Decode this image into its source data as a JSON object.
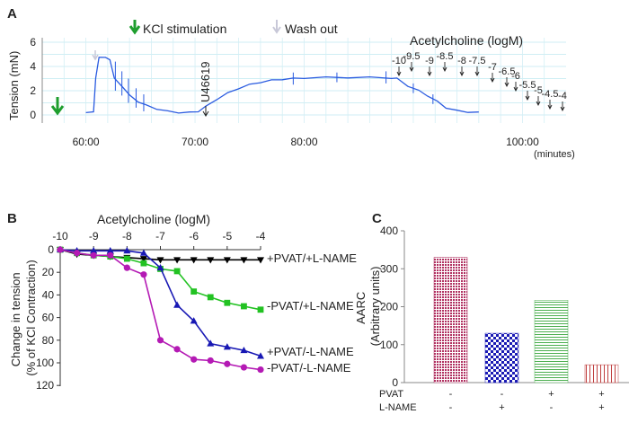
{
  "chart_data": [
    {
      "panel": "A",
      "type": "line",
      "ylabel": "Tension (mN)",
      "yticks": [
        "0",
        "2",
        "4",
        "6"
      ],
      "ylim": [
        -1,
        6.8
      ],
      "xlim": [
        56,
        104
      ],
      "xticks": [
        {
          "v": 60,
          "label": "60:00"
        },
        {
          "v": 70,
          "label": "70:00"
        },
        {
          "v": 80,
          "label": "80:00"
        },
        {
          "v": 100,
          "label": "100:00"
        }
      ],
      "xunit": "(minutes)",
      "trace": [
        [
          60,
          0.15
        ],
        [
          60.7,
          0.3
        ],
        [
          60.9,
          3.0
        ],
        [
          61.2,
          4.8
        ],
        [
          61.8,
          4.7
        ],
        [
          62.2,
          4.6
        ],
        [
          62.6,
          3.0
        ],
        [
          63.4,
          2.3
        ],
        [
          64,
          1.6
        ],
        [
          64.8,
          1.1
        ],
        [
          65.5,
          0.8
        ],
        [
          66.5,
          0.5
        ],
        [
          67.5,
          0.3
        ],
        [
          68.5,
          0.2
        ],
        [
          69.5,
          0.2
        ],
        [
          70.3,
          0.3
        ],
        [
          71,
          0.7
        ],
        [
          72,
          1.3
        ],
        [
          73,
          1.8
        ],
        [
          74,
          2.2
        ],
        [
          75,
          2.5
        ],
        [
          76,
          2.7
        ],
        [
          77,
          2.85
        ],
        [
          78,
          2.95
        ],
        [
          79,
          3.0
        ],
        [
          80,
          3.05
        ],
        [
          82,
          3.1
        ],
        [
          84,
          3.1
        ],
        [
          86,
          3.1
        ],
        [
          88,
          3.05
        ],
        [
          88.5,
          3.0
        ],
        [
          89.5,
          2.4
        ],
        [
          90.5,
          2.0
        ],
        [
          91.3,
          1.6
        ],
        [
          92.2,
          1.1
        ],
        [
          93,
          0.6
        ],
        [
          94,
          0.35
        ],
        [
          95,
          0.25
        ],
        [
          96,
          0.2
        ]
      ],
      "annotations": {
        "kcl": "KCl stimulation",
        "wash": "Wash out",
        "u46619": "U46619",
        "ach_title": "Acetylcholine (logM)",
        "doses": [
          "-10",
          "-9.5",
          "-9",
          "-8.5",
          "-8",
          "-7.5",
          "-7",
          "-6.5",
          "-6",
          "-5.5",
          "-5",
          "-4.5",
          "-4"
        ]
      }
    },
    {
      "panel": "B",
      "type": "line",
      "title": "Acetylcholine (logM)",
      "ylabel": "Change in tension (% of KCl Contraction)",
      "xlim": [
        -10,
        -4
      ],
      "ylim": [
        0,
        125
      ],
      "xticks": [
        "-10",
        "-9",
        "-8",
        "-7",
        "-6",
        "-5",
        "-4"
      ],
      "yticks": [
        "0",
        "20",
        "40",
        "60",
        "80",
        "100",
        "120"
      ],
      "x": [
        -10,
        -9.5,
        -9,
        -8.5,
        -8,
        -7.5,
        -7,
        -6.5,
        -6,
        -5.5,
        -5,
        -4.5,
        -4
      ],
      "series": [
        {
          "name": "+PVAT/+L-NAME",
          "color": "#000000",
          "marker": "triangle-down",
          "values": [
            0,
            4,
            5,
            6,
            7,
            8,
            9,
            9,
            9,
            9,
            9,
            9,
            9
          ]
        },
        {
          "name": "-PVAT/+L-NAME",
          "color": "#22c222",
          "marker": "square",
          "values": [
            0,
            3,
            5,
            6,
            8,
            12,
            17,
            19,
            37,
            42,
            47,
            50,
            53
          ]
        },
        {
          "name": "+PVAT/-L-NAME",
          "color": "#1818b4",
          "marker": "triangle-up",
          "values": [
            0,
            1,
            1,
            1,
            1,
            3,
            16,
            49,
            63,
            83,
            86,
            89,
            94
          ]
        },
        {
          "name": "-PVAT/-L-NAME",
          "color": "#b41ab4",
          "marker": "circle",
          "values": [
            0,
            3,
            5,
            5,
            16,
            22,
            80,
            88,
            97,
            98,
            101,
            104,
            106
          ]
        }
      ]
    },
    {
      "panel": "C",
      "type": "bar",
      "ylabel": "AARC (Arbitrary units)",
      "ylim": [
        0,
        400
      ],
      "yticks": [
        "0",
        "100",
        "200",
        "300",
        "400"
      ],
      "row_labels": [
        "PVAT",
        "L-NAME"
      ],
      "bars": [
        {
          "pvat": "-",
          "lname": "-",
          "value": 330,
          "color": "#b03060",
          "pattern": "dots"
        },
        {
          "pvat": "-",
          "lname": "+",
          "value": 130,
          "color": "#1a1ab4",
          "pattern": "checker"
        },
        {
          "pvat": "+",
          "lname": "-",
          "value": 217,
          "color": "#4caf50",
          "pattern": "hlines"
        },
        {
          "pvat": "+",
          "lname": "+",
          "value": 47,
          "color": "#c04040",
          "pattern": "vlines"
        }
      ]
    }
  ],
  "panel_labels": [
    "A",
    "B",
    "C"
  ]
}
